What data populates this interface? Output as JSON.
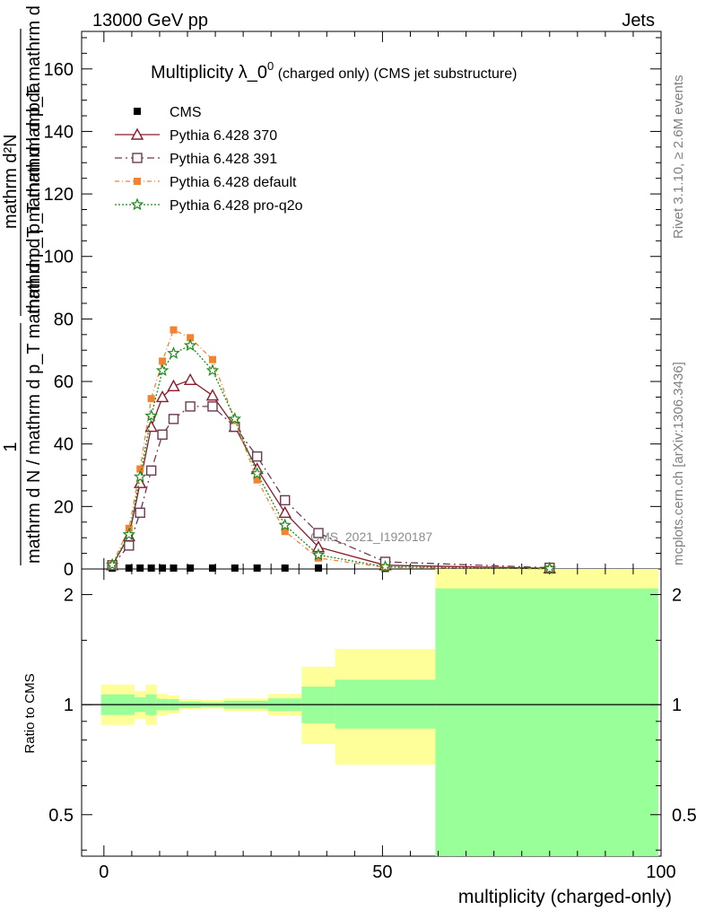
{
  "header": {
    "left": "13000 GeV pp",
    "right": "Jets"
  },
  "side_labels": {
    "rivet": "Rivet 3.1.10, ≥ 2.6M events",
    "mcplots": "mcplots.cern.ch [arXiv:1306.3436]"
  },
  "colors": {
    "cms": "#000000",
    "p370": "#8b1a2b",
    "p391": "#6b3a52",
    "pdefault": "#f58231",
    "pq2o": "#1a8a1a",
    "band_outer": "#ffff99",
    "band_inner": "#99ff99"
  },
  "chart_data": [
    {
      "type": "line",
      "title": "Multiplicity λ_0⁰ (charged only) (CMS jet substructure)",
      "title_main": "Multiplicity λ_0",
      "title_sup": "0",
      "title_sub": " (charged only) (CMS jet substructure)",
      "ylabel_num": "1",
      "ylabel_den": "mathrm d N / mathrm d p_T mathrm d p_T mathrm d lambda",
      "ylabel_num2": "mathrm d²N",
      "ylabel_den2": "mathrm d p_T mathrm d p_T mathrm d lambda",
      "xlim": [
        -4,
        100
      ],
      "ylim": [
        0,
        172
      ],
      "yticks": [
        0,
        20,
        40,
        60,
        80,
        100,
        120,
        140,
        160
      ],
      "grid": false,
      "legend_position": "top-left",
      "watermark": "CMS_2021_I1920187",
      "series": [
        {
          "name": "CMS",
          "marker": "square",
          "x": [
            1.5,
            4.5,
            6.5,
            8.5,
            10.5,
            12.5,
            15.5,
            19.5,
            23.5,
            27.5,
            32.5,
            38.5,
            50.5,
            80
          ],
          "y": [
            0.3,
            0.3,
            0.3,
            0.3,
            0.3,
            0.3,
            0.3,
            0.3,
            0.3,
            0.3,
            0.3,
            0.3,
            0.2,
            0.1
          ]
        },
        {
          "name": "Pythia 6.428 370",
          "marker": "triangle",
          "x": [
            1.5,
            4.5,
            6.5,
            8.5,
            10.5,
            12.5,
            15.5,
            19.5,
            23.5,
            27.5,
            32.5,
            38.5,
            50.5,
            80
          ],
          "y": [
            1.2,
            10.5,
            27.5,
            45.5,
            55,
            58.5,
            60.5,
            55.5,
            45.5,
            32,
            18,
            7,
            1.2,
            0.2
          ]
        },
        {
          "name": "Pythia 6.428 391",
          "marker": "open-square",
          "x": [
            1.5,
            4.5,
            6.5,
            8.5,
            10.5,
            12.5,
            15.5,
            19.5,
            23.5,
            27.5,
            32.5,
            38.5,
            50.5,
            80
          ],
          "y": [
            1.2,
            7.5,
            18,
            31.5,
            43,
            48,
            52,
            52,
            45.5,
            36,
            22,
            11.5,
            2.3,
            0.4
          ]
        },
        {
          "name": "Pythia 6.428 default",
          "marker": "filled-square",
          "x": [
            1.5,
            4.5,
            6.5,
            8.5,
            10.5,
            12.5,
            15.5,
            19.5,
            23.5,
            27.5,
            32.5,
            38.5,
            50.5,
            80
          ],
          "y": [
            1.5,
            13,
            32,
            54.5,
            66.5,
            76.5,
            74,
            67,
            47.5,
            28.5,
            12,
            3.5,
            0.5,
            0.1
          ]
        },
        {
          "name": "Pythia 6.428 pro-q2o",
          "marker": "star",
          "x": [
            1.5,
            4.5,
            6.5,
            8.5,
            10.5,
            12.5,
            15.5,
            19.5,
            23.5,
            27.5,
            32.5,
            38.5,
            50.5,
            80
          ],
          "y": [
            1.3,
            11,
            29.5,
            49,
            63.5,
            69,
            71.5,
            63.5,
            48,
            30.5,
            14,
            4.5,
            0.7,
            0.1
          ]
        }
      ]
    },
    {
      "type": "area",
      "title": "",
      "xlabel": "multiplicity (charged-only)",
      "ylabel": "Ratio to CMS",
      "xlim": [
        -4,
        100
      ],
      "ylim": [
        0.385,
        2.35
      ],
      "yscale": "log",
      "yticks": [
        0.5,
        1,
        2
      ],
      "xticks": [
        0,
        50,
        100
      ],
      "reference_line": 1,
      "bins": [
        {
          "x0": -0.5,
          "x1": 5.5,
          "inner": [
            0.937,
            1.067
          ],
          "outer": [
            0.88,
            1.135
          ]
        },
        {
          "x0": 5.5,
          "x1": 7.5,
          "inner": [
            0.955,
            1.047
          ],
          "outer": [
            0.915,
            1.09
          ]
        },
        {
          "x0": 7.5,
          "x1": 9.5,
          "inner": [
            0.937,
            1.067
          ],
          "outer": [
            0.88,
            1.135
          ]
        },
        {
          "x0": 9.5,
          "x1": 11.5,
          "inner": [
            0.965,
            1.037
          ],
          "outer": [
            0.935,
            1.07
          ]
        },
        {
          "x0": 11.5,
          "x1": 13.5,
          "inner": [
            0.965,
            1.035
          ],
          "outer": [
            0.945,
            1.06
          ]
        },
        {
          "x0": 13.5,
          "x1": 17.5,
          "inner": [
            0.98,
            1.02
          ],
          "outer": [
            0.97,
            1.035
          ]
        },
        {
          "x0": 17.5,
          "x1": 21.5,
          "inner": [
            0.985,
            1.015
          ],
          "outer": [
            0.975,
            1.03
          ]
        },
        {
          "x0": 21.5,
          "x1": 29.5,
          "inner": [
            0.975,
            1.025
          ],
          "outer": [
            0.96,
            1.04
          ]
        },
        {
          "x0": 29.5,
          "x1": 35.5,
          "inner": [
            0.96,
            1.04
          ],
          "outer": [
            0.935,
            1.07
          ]
        },
        {
          "x0": 35.5,
          "x1": 41.5,
          "inner": [
            0.89,
            1.12
          ],
          "outer": [
            0.78,
            1.27
          ]
        },
        {
          "x0": 41.5,
          "x1": 59.5,
          "inner": [
            0.86,
            1.17
          ],
          "outer": [
            0.685,
            1.42
          ]
        },
        {
          "x0": 59.5,
          "x1": 99.5,
          "inner": [
            0.385,
            2.08
          ],
          "outer": [
            0.385,
            2.35
          ]
        }
      ]
    }
  ]
}
